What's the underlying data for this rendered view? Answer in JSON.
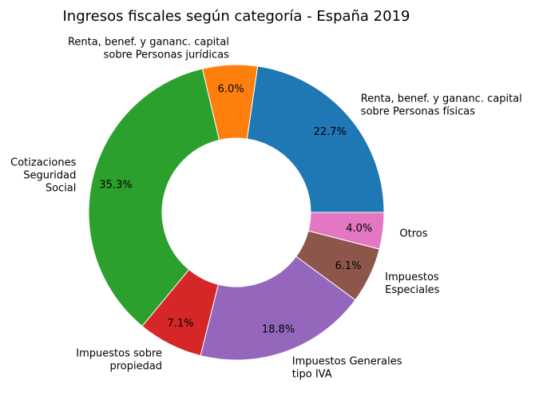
{
  "chart_data": {
    "type": "pie",
    "title": "Ingresos fiscales según categoría - España 2019",
    "donut": true,
    "start_angle_deg": 0,
    "direction": "counterclockwise",
    "slices": [
      {
        "label_lines": [
          "Renta, benef. y gananc. capital",
          "sobre Personas físicas"
        ],
        "value": 22.7,
        "pct_label": "22.7%",
        "color": "#1f77b4"
      },
      {
        "label_lines": [
          "Renta, benef. y gananc. capital",
          "sobre Personas jurídicas"
        ],
        "value": 6.0,
        "pct_label": "6.0%",
        "color": "#ff7f0e"
      },
      {
        "label_lines": [
          "Cotizaciones",
          "Seguridad",
          "Social"
        ],
        "value": 35.3,
        "pct_label": "35.3%",
        "color": "#2ca02c"
      },
      {
        "label_lines": [
          "Impuestos sobre",
          "propiedad"
        ],
        "value": 7.1,
        "pct_label": "7.1%",
        "color": "#d62728"
      },
      {
        "label_lines": [
          "Impuestos Generales",
          "tipo IVA"
        ],
        "value": 18.8,
        "pct_label": "18.8%",
        "color": "#9467bd"
      },
      {
        "label_lines": [
          "Impuestos",
          "Especiales"
        ],
        "value": 6.1,
        "pct_label": "6.1%",
        "color": "#8c564b"
      },
      {
        "label_lines": [
          "Otros"
        ],
        "value": 4.0,
        "pct_label": "4.0%",
        "color": "#e377c2"
      }
    ]
  }
}
